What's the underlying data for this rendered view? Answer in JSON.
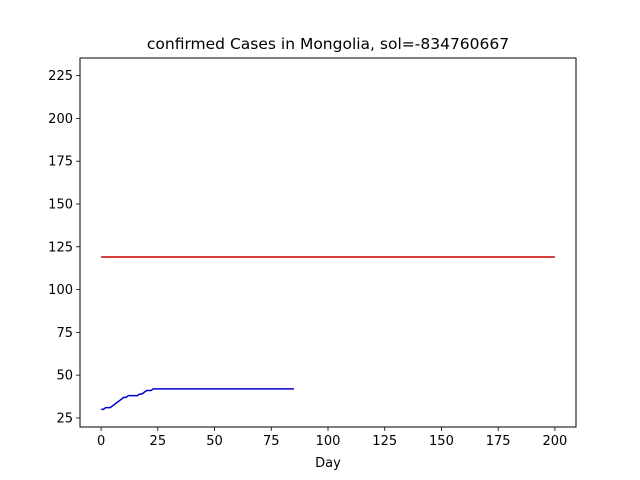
{
  "chart_data": {
    "type": "line",
    "title": "confirmed Cases in Mongolia, sol=-834760667",
    "xlabel": "Day",
    "ylabel": "",
    "xlim": [
      -9.3,
      209.3
    ],
    "ylim": [
      19.7,
      235.3
    ],
    "x_ticks": [
      0,
      25,
      50,
      75,
      100,
      125,
      150,
      175,
      200
    ],
    "y_ticks": [
      25,
      50,
      75,
      100,
      125,
      150,
      175,
      200,
      225
    ],
    "grid": false,
    "series": [
      {
        "color": "#0000cc",
        "x": [
          0,
          1,
          2,
          3,
          4,
          5,
          6,
          7,
          8,
          9,
          10,
          11,
          12,
          13,
          14,
          15,
          16,
          17,
          18,
          19,
          20,
          21,
          22,
          23,
          24,
          25,
          26,
          27,
          28,
          29,
          30,
          31,
          32,
          33,
          34,
          35,
          36,
          37,
          38,
          39,
          40,
          41,
          42,
          43,
          44,
          45,
          46,
          47,
          48,
          49,
          50,
          51,
          52,
          53,
          54,
          55,
          56,
          57,
          58,
          59,
          60,
          61,
          62,
          63,
          64,
          65,
          66,
          67,
          68,
          69,
          70,
          71,
          72,
          73,
          74,
          75,
          76,
          77,
          78,
          79,
          80,
          81,
          82,
          83,
          84,
          85
        ],
        "values": [
          30,
          30,
          31,
          31,
          31,
          32,
          33,
          34,
          35,
          36,
          37,
          37,
          38,
          38,
          38,
          38,
          38,
          39,
          39,
          40,
          41,
          41,
          41,
          42,
          42,
          42,
          42,
          42,
          42,
          42,
          42,
          42,
          42,
          42,
          42,
          42,
          42,
          42,
          42,
          42,
          42,
          42,
          42,
          42,
          42,
          42,
          42,
          42,
          42,
          42,
          42,
          42,
          42,
          42,
          42,
          42,
          42,
          42,
          42,
          42,
          42,
          42,
          42,
          42,
          42,
          42,
          42,
          42,
          42,
          42,
          42,
          42,
          42,
          42,
          42,
          42,
          42,
          42,
          42,
          42,
          42,
          42,
          42,
          42,
          42,
          42
        ]
      },
      {
        "color": "#cc0000",
        "x": [
          0,
          200
        ],
        "values": [
          119,
          119
        ]
      }
    ]
  }
}
